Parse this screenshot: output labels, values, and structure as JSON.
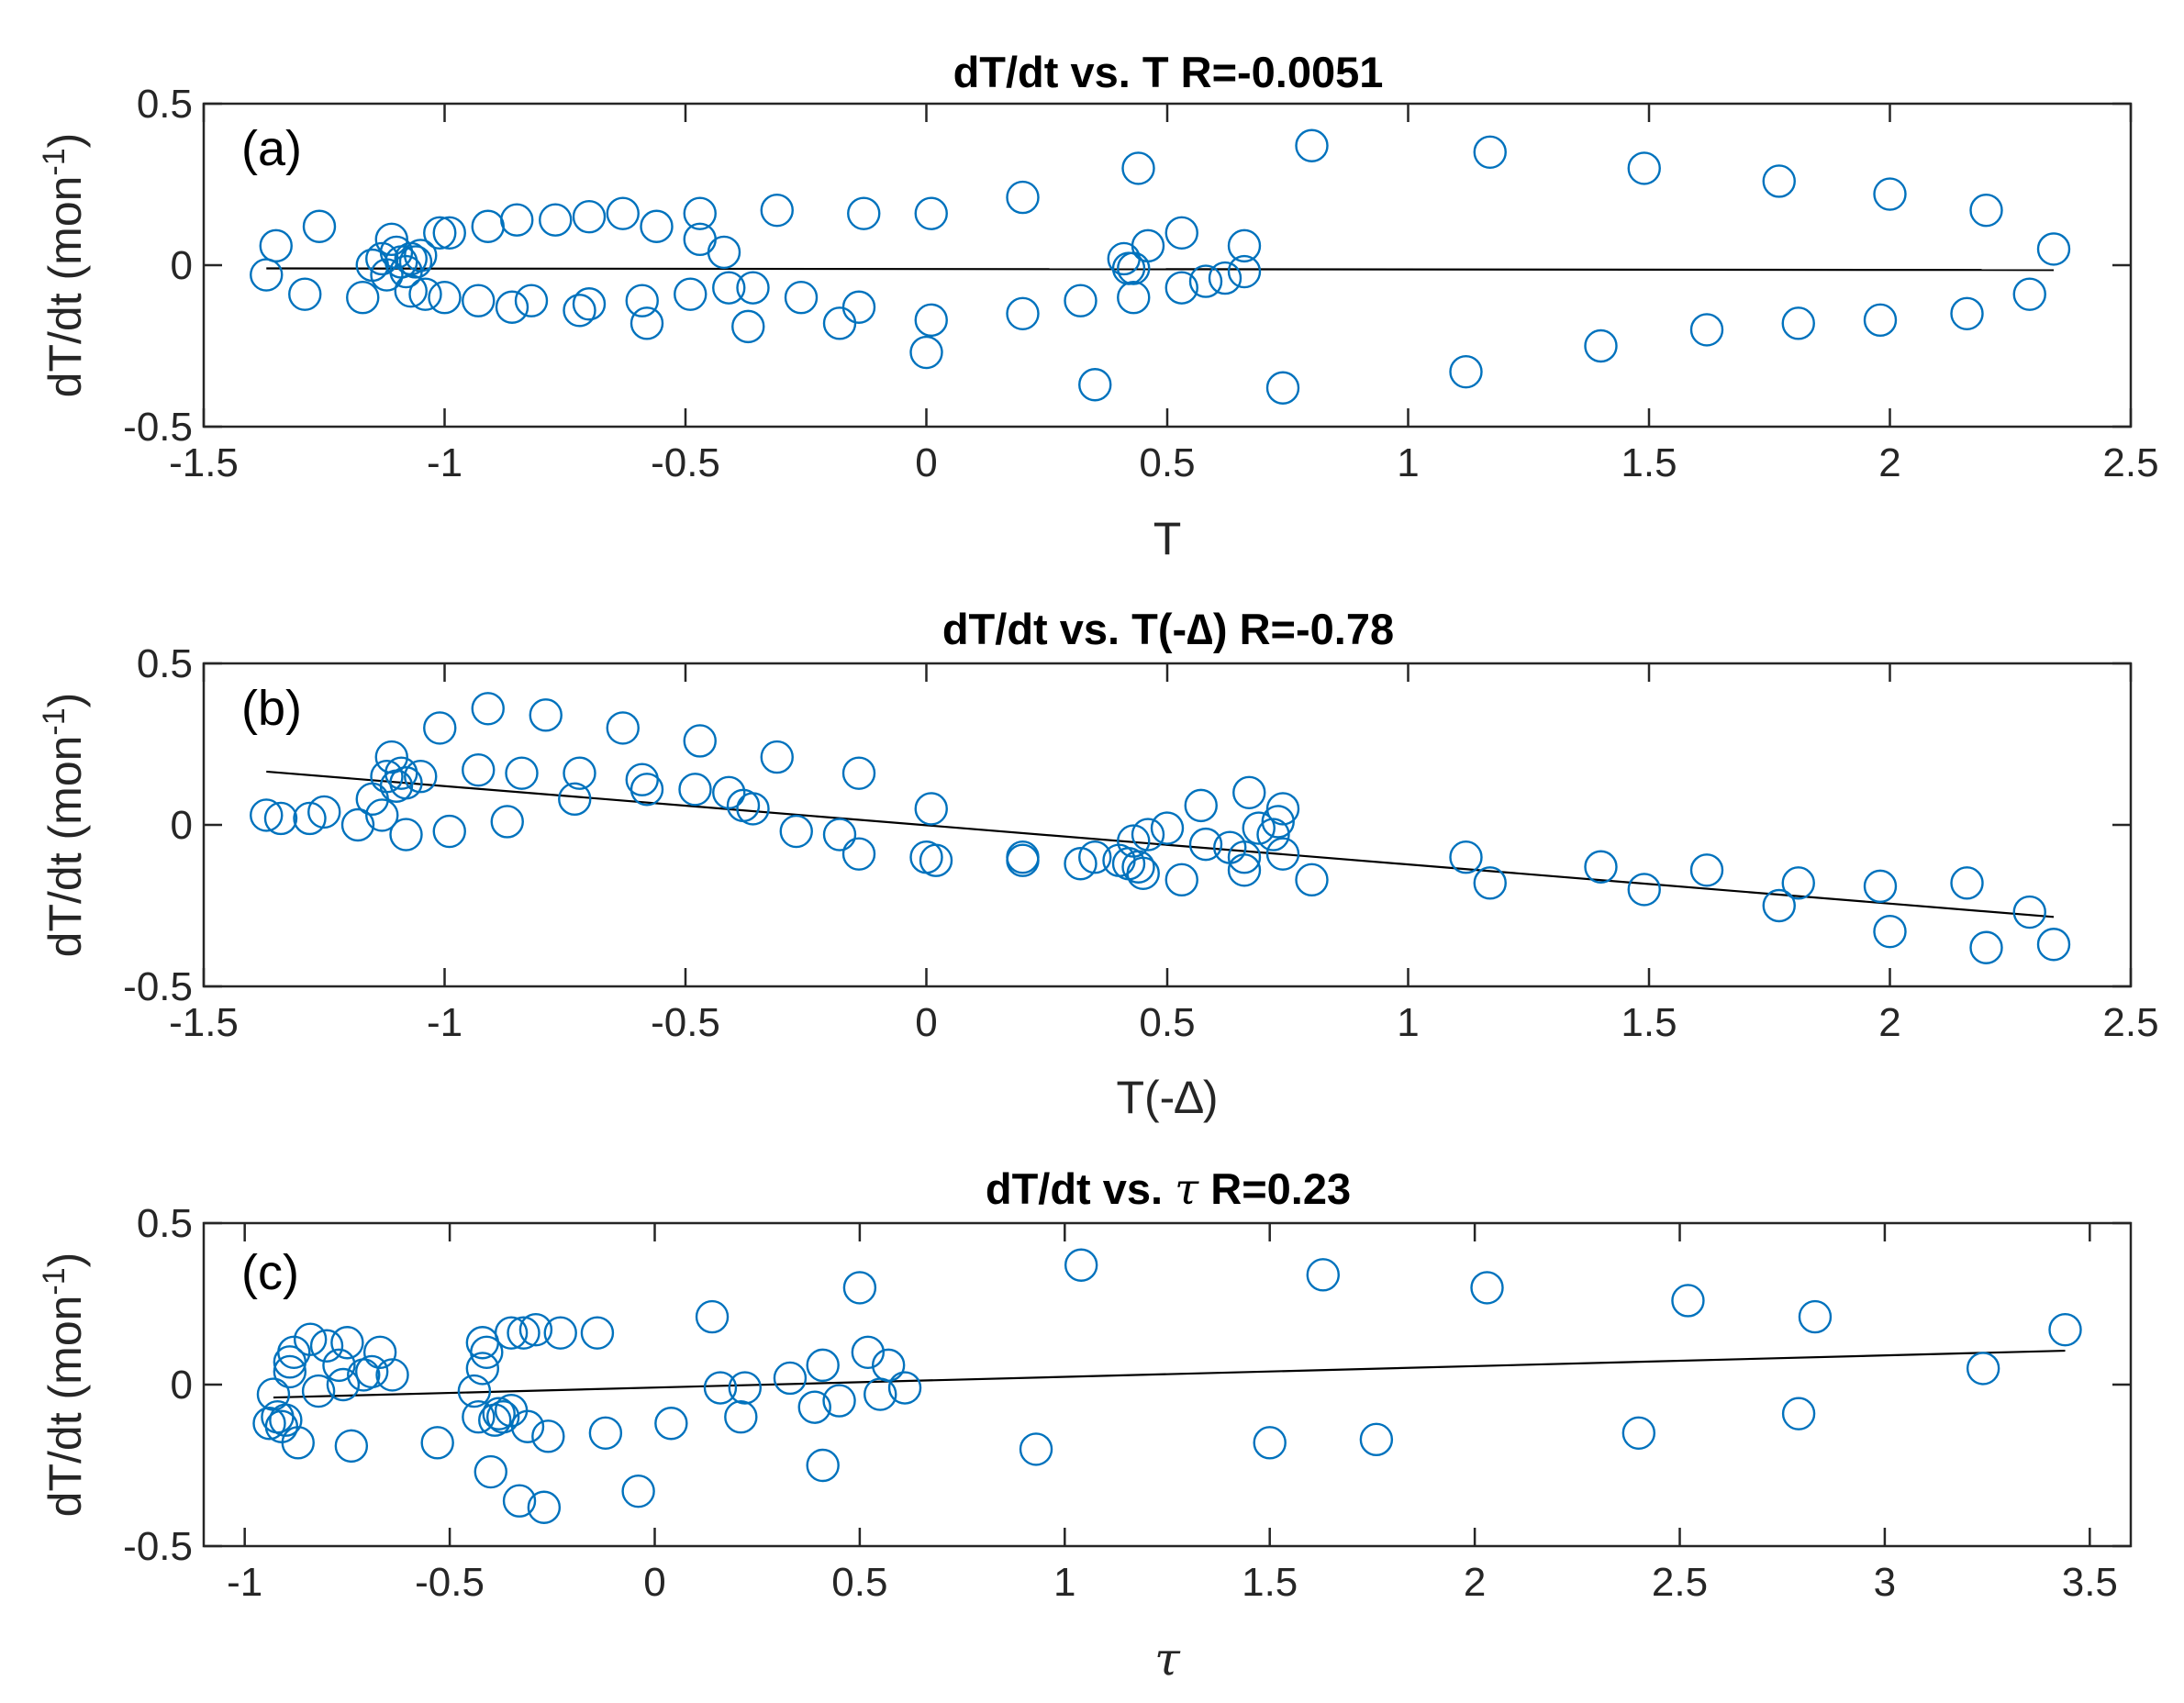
{
  "colors": {
    "marker": "#0072BD",
    "fit_line": "#000000",
    "axes": "#262626"
  },
  "chart_data": [
    {
      "id": "a",
      "type": "scatter",
      "title_text": "dT/dt vs. T R=-0.0051",
      "panel_label": "(a)",
      "xlabel": "T",
      "ylabel_main": "dT/dt (mon",
      "ylabel_sup": "-1",
      "ylabel_close": ")",
      "xlim": [
        -1.5,
        2.5
      ],
      "ylim": [
        -0.5,
        0.5
      ],
      "xticks": [
        -1.5,
        -1,
        -0.5,
        0,
        0.5,
        1,
        1.5,
        2,
        2.5
      ],
      "xtick_labels": [
        "-1.5",
        "-1",
        "-0.5",
        "0",
        "0.5",
        "1",
        "1.5",
        "2",
        "2.5"
      ],
      "yticks": [
        -0.5,
        0,
        0.5
      ],
      "ytick_labels": [
        "-0.5",
        "0",
        "0.5"
      ],
      "fit_line": {
        "x": [
          -1.37,
          2.34
        ],
        "y": [
          -0.01,
          -0.015
        ]
      },
      "points": [
        [
          -1.37,
          -0.03
        ],
        [
          -1.35,
          0.06
        ],
        [
          -1.29,
          -0.09
        ],
        [
          -1.26,
          0.12
        ],
        [
          -1.17,
          -0.1
        ],
        [
          -1.15,
          0.0
        ],
        [
          -1.13,
          0.02
        ],
        [
          -1.12,
          -0.03
        ],
        [
          -1.11,
          0.08
        ],
        [
          -1.1,
          0.04
        ],
        [
          -1.09,
          0.01
        ],
        [
          -1.08,
          -0.02
        ],
        [
          -1.07,
          0.02
        ],
        [
          -1.06,
          0.01
        ],
        [
          -1.05,
          0.03
        ],
        [
          -1.07,
          -0.08
        ],
        [
          -1.04,
          -0.09
        ],
        [
          -1.01,
          0.1
        ],
        [
          -0.99,
          0.1
        ],
        [
          -1.0,
          -0.1
        ],
        [
          -0.93,
          -0.11
        ],
        [
          -0.91,
          0.12
        ],
        [
          -0.86,
          -0.13
        ],
        [
          -0.85,
          0.14
        ],
        [
          -0.82,
          -0.11
        ],
        [
          -0.77,
          0.14
        ],
        [
          -0.72,
          -0.14
        ],
        [
          -0.7,
          -0.12
        ],
        [
          -0.7,
          0.15
        ],
        [
          -0.63,
          0.16
        ],
        [
          -0.59,
          -0.11
        ],
        [
          -0.58,
          -0.18
        ],
        [
          -0.56,
          0.12
        ],
        [
          -0.49,
          -0.09
        ],
        [
          -0.47,
          0.16
        ],
        [
          -0.47,
          0.08
        ],
        [
          -0.42,
          0.04
        ],
        [
          -0.41,
          -0.07
        ],
        [
          -0.37,
          -0.19
        ],
        [
          -0.36,
          -0.07
        ],
        [
          -0.31,
          0.17
        ],
        [
          -0.26,
          -0.1
        ],
        [
          -0.18,
          -0.18
        ],
        [
          -0.14,
          -0.13
        ],
        [
          -0.13,
          0.16
        ],
        [
          0.01,
          -0.17
        ],
        [
          0.0,
          -0.27
        ],
        [
          0.01,
          0.16
        ],
        [
          0.2,
          0.21
        ],
        [
          0.2,
          -0.15
        ],
        [
          0.32,
          -0.11
        ],
        [
          0.35,
          -0.37
        ],
        [
          0.41,
          0.02
        ],
        [
          0.42,
          -0.01
        ],
        [
          0.43,
          -0.1
        ],
        [
          0.44,
          0.3
        ],
        [
          0.43,
          -0.01
        ],
        [
          0.46,
          0.06
        ],
        [
          0.53,
          0.1
        ],
        [
          0.53,
          -0.07
        ],
        [
          0.58,
          -0.05
        ],
        [
          0.62,
          -0.04
        ],
        [
          0.66,
          0.06
        ],
        [
          0.66,
          -0.02
        ],
        [
          0.74,
          -0.38
        ],
        [
          0.8,
          0.37
        ],
        [
          1.12,
          -0.33
        ],
        [
          1.17,
          0.35
        ],
        [
          1.4,
          -0.25
        ],
        [
          1.49,
          0.3
        ],
        [
          1.62,
          -0.2
        ],
        [
          1.77,
          0.26
        ],
        [
          1.81,
          -0.18
        ],
        [
          1.98,
          -0.17
        ],
        [
          2.0,
          0.22
        ],
        [
          2.16,
          -0.15
        ],
        [
          2.2,
          0.17
        ],
        [
          2.29,
          -0.09
        ],
        [
          2.34,
          0.05
        ]
      ]
    },
    {
      "id": "b",
      "type": "scatter",
      "title_text": "dT/dt vs. T(-∆) R=-0.78",
      "panel_label": "(b)",
      "xlabel": "T(-∆)",
      "ylabel_main": "dT/dt (mon",
      "ylabel_sup": "-1",
      "ylabel_close": ")",
      "xlim": [
        -1.5,
        2.5
      ],
      "ylim": [
        -0.5,
        0.5
      ],
      "xticks": [
        -1.5,
        -1,
        -0.5,
        0,
        0.5,
        1,
        1.5,
        2,
        2.5
      ],
      "xtick_labels": [
        "-1.5",
        "-1",
        "-0.5",
        "0",
        "0.5",
        "1",
        "1.5",
        "2",
        "2.5"
      ],
      "yticks": [
        -0.5,
        0,
        0.5
      ],
      "ytick_labels": [
        "-0.5",
        "0",
        "0.5"
      ],
      "fit_line": {
        "x": [
          -1.37,
          2.34
        ],
        "y": [
          0.165,
          -0.285
        ]
      },
      "points": [
        [
          -1.37,
          0.03
        ],
        [
          -1.34,
          0.02
        ],
        [
          -1.28,
          0.02
        ],
        [
          -1.25,
          0.04
        ],
        [
          -1.18,
          0.0
        ],
        [
          -1.15,
          0.08
        ],
        [
          -1.13,
          0.03
        ],
        [
          -1.12,
          0.15
        ],
        [
          -1.11,
          0.21
        ],
        [
          -1.1,
          0.12
        ],
        [
          -1.09,
          0.16
        ],
        [
          -1.08,
          0.13
        ],
        [
          -1.08,
          -0.03
        ],
        [
          -1.05,
          0.15
        ],
        [
          -1.01,
          0.3
        ],
        [
          -0.99,
          -0.02
        ],
        [
          -0.93,
          0.17
        ],
        [
          -0.91,
          0.36
        ],
        [
          -0.87,
          0.01
        ],
        [
          -0.84,
          0.16
        ],
        [
          -0.79,
          0.34
        ],
        [
          -0.72,
          0.16
        ],
        [
          -0.73,
          0.08
        ],
        [
          -0.63,
          0.3
        ],
        [
          -0.59,
          0.14
        ],
        [
          -0.58,
          0.11
        ],
        [
          -0.48,
          0.11
        ],
        [
          -0.47,
          0.26
        ],
        [
          -0.41,
          0.1
        ],
        [
          -0.38,
          0.06
        ],
        [
          -0.36,
          0.05
        ],
        [
          -0.31,
          0.21
        ],
        [
          -0.27,
          -0.02
        ],
        [
          -0.18,
          -0.03
        ],
        [
          -0.14,
          0.16
        ],
        [
          -0.14,
          -0.09
        ],
        [
          0.0,
          -0.1
        ],
        [
          0.01,
          0.05
        ],
        [
          0.02,
          -0.11
        ],
        [
          0.2,
          -0.1
        ],
        [
          0.2,
          -0.11
        ],
        [
          0.32,
          -0.12
        ],
        [
          0.35,
          -0.1
        ],
        [
          0.4,
          -0.11
        ],
        [
          0.42,
          -0.12
        ],
        [
          0.43,
          -0.05
        ],
        [
          0.44,
          -0.13
        ],
        [
          0.45,
          -0.15
        ],
        [
          0.46,
          -0.03
        ],
        [
          0.5,
          -0.01
        ],
        [
          0.53,
          -0.17
        ],
        [
          0.57,
          0.06
        ],
        [
          0.58,
          -0.06
        ],
        [
          0.63,
          -0.07
        ],
        [
          0.66,
          -0.1
        ],
        [
          0.66,
          -0.14
        ],
        [
          0.67,
          0.1
        ],
        [
          0.69,
          -0.01
        ],
        [
          0.72,
          -0.03
        ],
        [
          0.73,
          0.01
        ],
        [
          0.74,
          0.05
        ],
        [
          0.74,
          -0.09
        ],
        [
          0.8,
          -0.17
        ],
        [
          1.12,
          -0.1
        ],
        [
          1.17,
          -0.18
        ],
        [
          1.4,
          -0.13
        ],
        [
          1.49,
          -0.2
        ],
        [
          1.62,
          -0.14
        ],
        [
          1.77,
          -0.25
        ],
        [
          1.81,
          -0.18
        ],
        [
          1.98,
          -0.19
        ],
        [
          2.0,
          -0.33
        ],
        [
          2.16,
          -0.18
        ],
        [
          2.2,
          -0.38
        ],
        [
          2.29,
          -0.27
        ],
        [
          2.34,
          -0.37
        ]
      ]
    },
    {
      "id": "c",
      "type": "scatter",
      "title_main": "dT/dt vs. ",
      "title_symbol": "τ",
      "title_tail": " R=0.23",
      "panel_label": "(c)",
      "xlabel": "τ",
      "ylabel_main": "dT/dt (mon",
      "ylabel_sup": "-1",
      "ylabel_close": ")",
      "xlim": [
        -1.1,
        3.6
      ],
      "ylim": [
        -0.5,
        0.5
      ],
      "xticks": [
        -1,
        -0.5,
        0,
        0.5,
        1,
        1.5,
        2,
        2.5,
        3,
        3.5
      ],
      "xtick_labels": [
        "-1",
        "-0.5",
        "0",
        "0.5",
        "1",
        "1.5",
        "2",
        "2.5",
        "3",
        "3.5"
      ],
      "yticks": [
        -0.5,
        0,
        0.5
      ],
      "ytick_labels": [
        "-0.5",
        "0",
        "0.5"
      ],
      "fit_line": {
        "x": [
          -0.93,
          3.44
        ],
        "y": [
          -0.04,
          0.105
        ]
      },
      "points": [
        [
          -0.93,
          -0.03
        ],
        [
          -0.94,
          -0.12
        ],
        [
          -0.92,
          -0.1
        ],
        [
          -0.91,
          -0.13
        ],
        [
          -0.9,
          -0.11
        ],
        [
          -0.89,
          0.04
        ],
        [
          -0.89,
          0.07
        ],
        [
          -0.88,
          0.1
        ],
        [
          -0.87,
          -0.18
        ],
        [
          -0.84,
          0.14
        ],
        [
          -0.82,
          -0.02
        ],
        [
          -0.8,
          0.12
        ],
        [
          -0.77,
          0.06
        ],
        [
          -0.76,
          0.0
        ],
        [
          -0.75,
          0.13
        ],
        [
          -0.74,
          -0.19
        ],
        [
          -0.71,
          0.03
        ],
        [
          -0.69,
          0.04
        ],
        [
          -0.67,
          0.1
        ],
        [
          -0.64,
          0.03
        ],
        [
          -0.53,
          -0.18
        ],
        [
          -0.44,
          -0.02
        ],
        [
          -0.43,
          -0.1
        ],
        [
          -0.42,
          0.05
        ],
        [
          -0.42,
          0.13
        ],
        [
          -0.41,
          0.1
        ],
        [
          -0.4,
          -0.27
        ],
        [
          -0.39,
          -0.11
        ],
        [
          -0.38,
          -0.09
        ],
        [
          -0.37,
          -0.1
        ],
        [
          -0.35,
          -0.08
        ],
        [
          -0.35,
          0.16
        ],
        [
          -0.33,
          -0.36
        ],
        [
          -0.32,
          0.16
        ],
        [
          -0.31,
          -0.13
        ],
        [
          -0.29,
          0.17
        ],
        [
          -0.27,
          -0.38
        ],
        [
          -0.26,
          -0.16
        ],
        [
          -0.23,
          0.16
        ],
        [
          -0.14,
          0.16
        ],
        [
          -0.12,
          -0.15
        ],
        [
          -0.04,
          -0.33
        ],
        [
          0.04,
          -0.12
        ],
        [
          0.14,
          0.21
        ],
        [
          0.16,
          -0.01
        ],
        [
          0.21,
          -0.1
        ],
        [
          0.22,
          -0.01
        ],
        [
          0.33,
          0.02
        ],
        [
          0.39,
          -0.07
        ],
        [
          0.41,
          0.06
        ],
        [
          0.41,
          -0.25
        ],
        [
          0.45,
          -0.05
        ],
        [
          0.5,
          0.3
        ],
        [
          0.52,
          0.1
        ],
        [
          0.55,
          -0.03
        ],
        [
          0.57,
          0.06
        ],
        [
          0.61,
          -0.01
        ],
        [
          0.93,
          -0.2
        ],
        [
          1.04,
          0.37
        ],
        [
          1.5,
          -0.18
        ],
        [
          1.63,
          0.34
        ],
        [
          1.76,
          -0.17
        ],
        [
          2.03,
          0.3
        ],
        [
          2.4,
          -0.15
        ],
        [
          2.52,
          0.26
        ],
        [
          2.79,
          -0.09
        ],
        [
          2.83,
          0.21
        ],
        [
          3.24,
          0.05
        ],
        [
          3.44,
          0.17
        ]
      ]
    }
  ]
}
